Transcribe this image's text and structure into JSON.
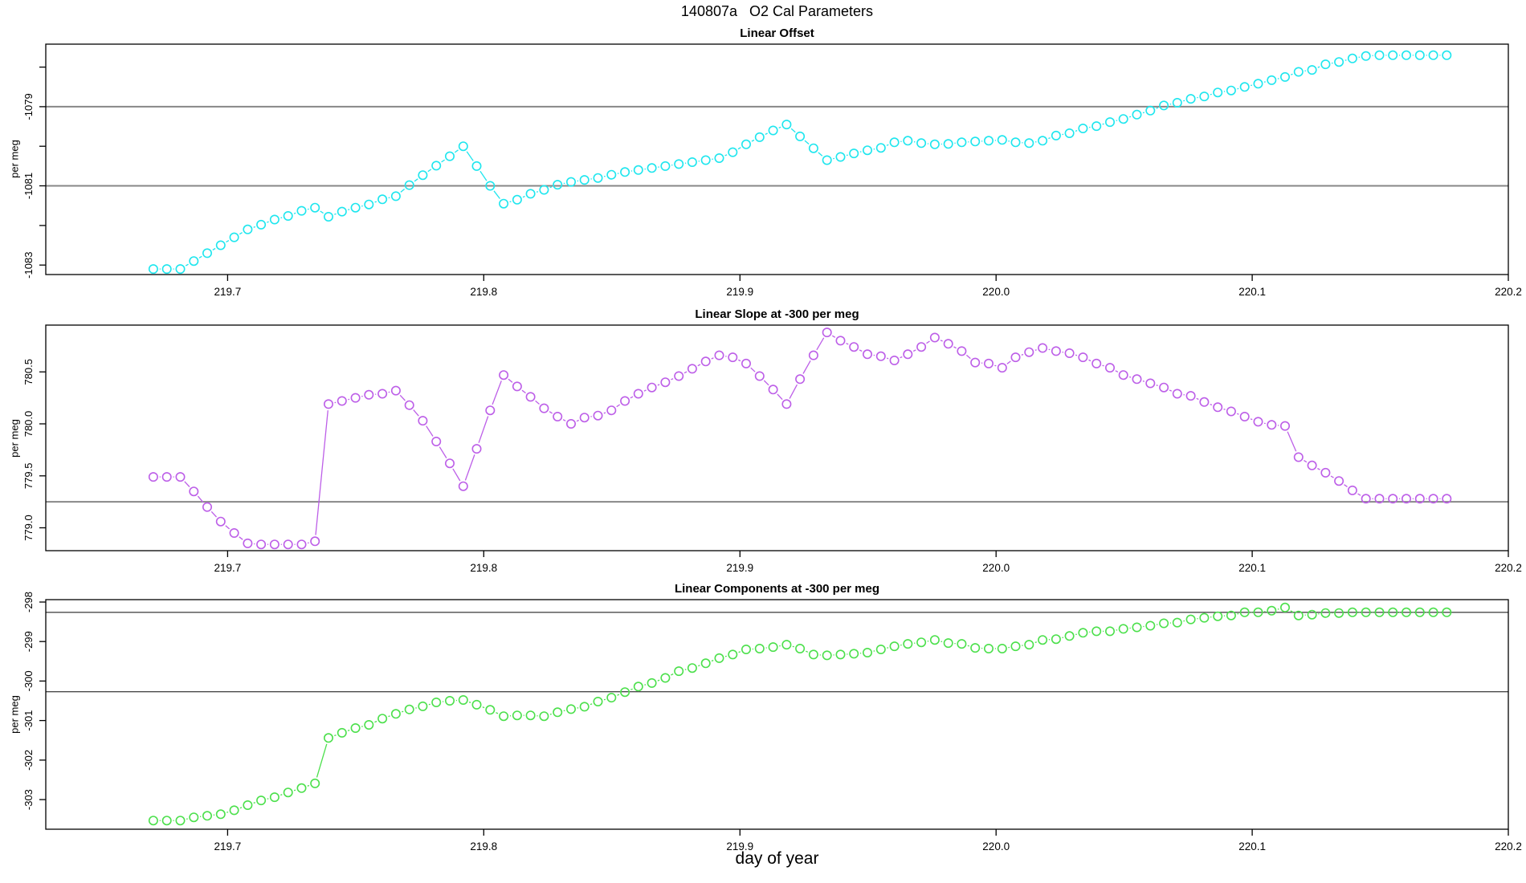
{
  "title": "140807a   O2 Cal Parameters",
  "xlabel": "day of year",
  "chart_data": {
    "type": "scatter",
    "marker": "open-circle",
    "line_between_points": true,
    "x_axis": {
      "lim": [
        219.629,
        220.2
      ],
      "start": 219.671,
      "step": 0.00526,
      "ticks": [
        {
          "v": 219.7,
          "label": "219.7"
        },
        {
          "v": 219.8,
          "label": "219.8"
        },
        {
          "v": 219.9,
          "label": "219.9"
        },
        {
          "v": 220.0,
          "label": "220.0"
        },
        {
          "v": 220.1,
          "label": "220.1"
        },
        {
          "v": 220.2,
          "label": "220.2"
        }
      ]
    },
    "panels": [
      {
        "name": "linear-offset",
        "title": "Linear Offset",
        "ylabel": "per meg",
        "color": "#1ee6ee",
        "ylim": [
          -1083.24,
          -1077.42
        ],
        "yticks": [
          {
            "v": -1078,
            "label": ""
          },
          {
            "v": -1079,
            "label": "-1079"
          },
          {
            "v": -1080,
            "label": ""
          },
          {
            "v": -1081,
            "label": "-1081"
          },
          {
            "v": -1082,
            "label": ""
          },
          {
            "v": -1083,
            "label": "-1083"
          }
        ],
        "ref_lines": [
          -1079,
          -1081
        ],
        "values": [
          -1083.1,
          -1083.1,
          -1083.1,
          -1082.9,
          -1082.7,
          -1082.5,
          -1082.3,
          -1082.1,
          -1081.98,
          -1081.85,
          -1081.76,
          -1081.63,
          -1081.55,
          -1081.78,
          -1081.65,
          -1081.55,
          -1081.47,
          -1081.34,
          -1081.26,
          -1080.98,
          -1080.73,
          -1080.49,
          -1080.25,
          -1080.0,
          -1080.5,
          -1081.0,
          -1081.45,
          -1081.35,
          -1081.2,
          -1081.1,
          -1080.97,
          -1080.9,
          -1080.85,
          -1080.8,
          -1080.72,
          -1080.65,
          -1080.6,
          -1080.55,
          -1080.5,
          -1080.45,
          -1080.4,
          -1080.35,
          -1080.3,
          -1080.15,
          -1079.95,
          -1079.77,
          -1079.6,
          -1079.45,
          -1079.75,
          -1080.05,
          -1080.35,
          -1080.27,
          -1080.18,
          -1080.1,
          -1080.04,
          -1079.9,
          -1079.86,
          -1079.92,
          -1079.95,
          -1079.94,
          -1079.9,
          -1079.88,
          -1079.86,
          -1079.84,
          -1079.9,
          -1079.92,
          -1079.86,
          -1079.73,
          -1079.67,
          -1079.55,
          -1079.49,
          -1079.39,
          -1079.31,
          -1079.2,
          -1079.1,
          -1078.97,
          -1078.9,
          -1078.8,
          -1078.74,
          -1078.64,
          -1078.59,
          -1078.5,
          -1078.42,
          -1078.33,
          -1078.25,
          -1078.12,
          -1078.07,
          -1077.93,
          -1077.87,
          -1077.78,
          -1077.72,
          -1077.7,
          -1077.7,
          -1077.7,
          -1077.7,
          -1077.7,
          -1077.7
        ]
      },
      {
        "name": "linear-slope",
        "title": "Linear Slope at -300 per meg",
        "ylabel": "per meg",
        "color": "#bd5fe8",
        "ylim": [
          778.78,
          780.95
        ],
        "yticks": [
          {
            "v": 780.5,
            "label": "780.5"
          },
          {
            "v": 780.0,
            "label": "780.0"
          },
          {
            "v": 779.5,
            "label": "779.5"
          },
          {
            "v": 779.0,
            "label": "779.0"
          }
        ],
        "ref_lines": [
          779.25
        ],
        "values": [
          779.49,
          779.49,
          779.49,
          779.35,
          779.2,
          779.06,
          778.95,
          778.85,
          778.84,
          778.84,
          778.84,
          778.84,
          778.87,
          780.19,
          780.22,
          780.25,
          780.28,
          780.29,
          780.32,
          780.18,
          780.03,
          779.83,
          779.62,
          779.4,
          779.76,
          780.13,
          780.47,
          780.36,
          780.26,
          780.15,
          780.07,
          780.0,
          780.06,
          780.08,
          780.13,
          780.22,
          780.29,
          780.35,
          780.4,
          780.46,
          780.53,
          780.6,
          780.66,
          780.64,
          780.58,
          780.46,
          780.33,
          780.19,
          780.43,
          780.66,
          780.88,
          780.8,
          780.74,
          780.67,
          780.65,
          780.61,
          780.67,
          780.74,
          780.83,
          780.77,
          780.7,
          780.59,
          780.58,
          780.54,
          780.64,
          780.69,
          780.73,
          780.7,
          780.68,
          780.64,
          780.58,
          780.54,
          780.47,
          780.43,
          780.39,
          780.35,
          780.29,
          780.27,
          780.21,
          780.16,
          780.12,
          780.07,
          780.02,
          779.99,
          779.98,
          779.68,
          779.6,
          779.53,
          779.45,
          779.36,
          779.28,
          779.28,
          779.28,
          779.28,
          779.28,
          779.28,
          779.28
        ]
      },
      {
        "name": "linear-components",
        "title": "Linear Components at -300 per meg",
        "ylabel": "per meg",
        "color": "#4ce04c",
        "ylim": [
          -303.75,
          -297.94
        ],
        "yticks": [
          {
            "v": -298,
            "label": "-298"
          },
          {
            "v": -299,
            "label": "-299"
          },
          {
            "v": -300,
            "label": "-300"
          },
          {
            "v": -301,
            "label": "-301"
          },
          {
            "v": -302,
            "label": "-302"
          },
          {
            "v": -303,
            "label": "-303"
          }
        ],
        "ref_lines": [
          -298.26,
          -300.27
        ],
        "values": [
          -303.53,
          -303.53,
          -303.53,
          -303.45,
          -303.41,
          -303.37,
          -303.27,
          -303.14,
          -303.02,
          -302.94,
          -302.82,
          -302.71,
          -302.59,
          -301.44,
          -301.31,
          -301.19,
          -301.11,
          -300.95,
          -300.83,
          -300.72,
          -300.64,
          -300.54,
          -300.5,
          -300.48,
          -300.6,
          -300.73,
          -300.89,
          -300.87,
          -300.87,
          -300.89,
          -300.79,
          -300.71,
          -300.65,
          -300.52,
          -300.42,
          -300.28,
          -300.14,
          -300.05,
          -299.92,
          -299.75,
          -299.67,
          -299.55,
          -299.42,
          -299.33,
          -299.2,
          -299.18,
          -299.14,
          -299.08,
          -299.18,
          -299.33,
          -299.35,
          -299.33,
          -299.31,
          -299.28,
          -299.2,
          -299.12,
          -299.06,
          -299.02,
          -298.96,
          -299.04,
          -299.06,
          -299.16,
          -299.18,
          -299.18,
          -299.12,
          -299.08,
          -298.96,
          -298.94,
          -298.86,
          -298.78,
          -298.74,
          -298.74,
          -298.68,
          -298.64,
          -298.6,
          -298.54,
          -298.52,
          -298.44,
          -298.4,
          -298.36,
          -298.34,
          -298.26,
          -298.26,
          -298.22,
          -298.14,
          -298.34,
          -298.32,
          -298.28,
          -298.28,
          -298.26,
          -298.26,
          -298.26,
          -298.26,
          -298.26,
          -298.26,
          -298.26,
          -298.26
        ]
      }
    ]
  }
}
